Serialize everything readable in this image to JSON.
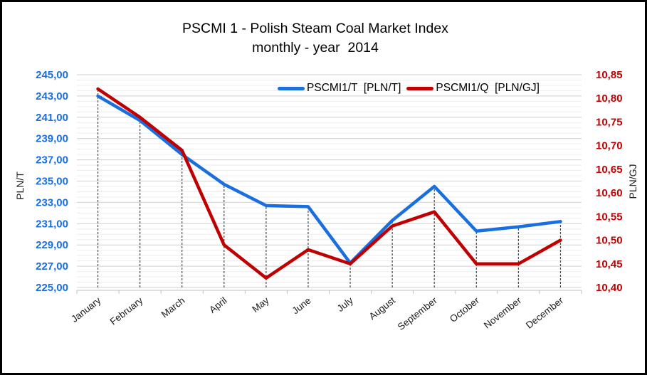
{
  "chart": {
    "title": "PSCMI 1 - Polish Steam Coal Market Index",
    "subtitle": "monthly - year  2014"
  },
  "chart_data": {
    "type": "line",
    "title": "PSCMI 1 - Polish Steam Coal Market Index",
    "subtitle": "monthly - year  2014",
    "categories": [
      "January",
      "February",
      "March",
      "April",
      "May",
      "June",
      "July",
      "August",
      "September",
      "October",
      "November",
      "December"
    ],
    "series": [
      {
        "name": "PSCMI1/T  [PLN/T]",
        "axis": "left",
        "color": "#1a6fe0",
        "values": [
          243.0,
          240.7,
          237.5,
          234.7,
          232.7,
          232.6,
          227.3,
          231.3,
          234.5,
          230.3,
          230.7,
          231.2
        ]
      },
      {
        "name": "PSCMI1/Q  [PLN/GJ]",
        "axis": "right",
        "color": "#c00000",
        "values": [
          10.82,
          10.76,
          10.69,
          10.49,
          10.42,
          10.48,
          10.45,
          10.53,
          10.56,
          10.45,
          10.45,
          10.5
        ]
      }
    ],
    "axes": {
      "left": {
        "label": "PLN/T",
        "min": 225,
        "max": 245,
        "major_step": 2,
        "minor_step": 0.5,
        "color": "#1a6fe0",
        "ticks": [
          "245,00",
          "243,00",
          "241,00",
          "239,00",
          "237,00",
          "235,00",
          "233,00",
          "231,00",
          "229,00",
          "227,00",
          "225,00"
        ]
      },
      "right": {
        "label": "PLN/GJ",
        "min": 10.4,
        "max": 10.85,
        "major_step": 0.05,
        "color": "#c00000",
        "ticks": [
          "10,85",
          "10,80",
          "10,75",
          "10,70",
          "10,65",
          "10,60",
          "10,55",
          "10,50",
          "10,45",
          "10,40"
        ]
      }
    },
    "layout": {
      "grid": "horizontal major+minor",
      "droplines": true,
      "legend_position": "top-center-inside",
      "x_label_rotation_deg": -38
    },
    "style": {
      "minor_grid_color": "#ededed",
      "major_grid_color": "#d2d2d2",
      "axis_line_color": "#bfbfbf",
      "dropline_color": "#4d4d4d"
    }
  }
}
